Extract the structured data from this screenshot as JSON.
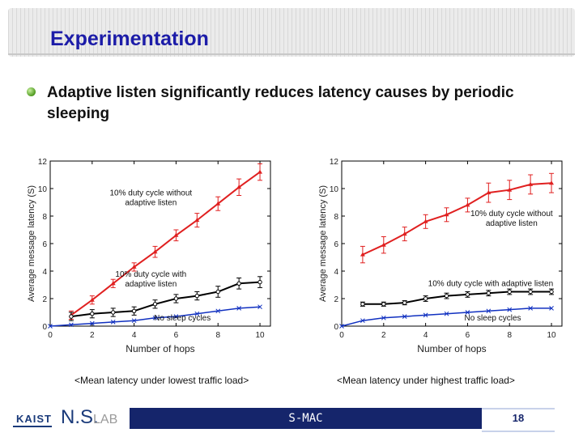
{
  "slide": {
    "title": "Experimentation",
    "bullet": "Adaptive listen significantly reduces latency causes by periodic sleeping"
  },
  "chart_data": [
    {
      "type": "line",
      "caption": "<Mean latency under lowest traffic load>",
      "xlabel": "Number of hops",
      "ylabel": "Average message latency (S)",
      "xlim": [
        0,
        10.5
      ],
      "ylim": [
        0,
        12
      ],
      "xticks": [
        "0",
        "2",
        "4",
        "6",
        "8",
        "10"
      ],
      "yticks": [
        "0",
        "2",
        "4",
        "6",
        "8",
        "10",
        "12"
      ],
      "series": [
        {
          "name": "10% duty cycle without adaptive listen",
          "color": "#e02020",
          "marker": "triangle",
          "x": [
            1,
            2,
            3,
            4,
            5,
            6,
            7,
            8,
            9,
            10
          ],
          "y": [
            0.8,
            1.9,
            3.1,
            4.3,
            5.4,
            6.6,
            7.7,
            8.9,
            10.1,
            11.2
          ],
          "err": [
            0.3,
            0.3,
            0.3,
            0.3,
            0.4,
            0.4,
            0.5,
            0.5,
            0.6,
            0.6
          ]
        },
        {
          "name": "10% duty cycle with adaptive listen",
          "color": "#000000",
          "marker": "circle",
          "x": [
            1,
            2,
            3,
            4,
            5,
            6,
            7,
            8,
            9,
            10
          ],
          "y": [
            0.7,
            0.9,
            1.0,
            1.1,
            1.6,
            2.0,
            2.2,
            2.5,
            3.1,
            3.2
          ],
          "err": [
            0.3,
            0.3,
            0.3,
            0.3,
            0.3,
            0.3,
            0.3,
            0.4,
            0.4,
            0.4
          ]
        },
        {
          "name": "No sleep cycles",
          "color": "#1030c0",
          "marker": "x",
          "x": [
            0,
            1,
            2,
            3,
            4,
            5,
            6,
            7,
            8,
            9,
            10
          ],
          "y": [
            0.0,
            0.1,
            0.2,
            0.3,
            0.4,
            0.6,
            0.7,
            0.9,
            1.1,
            1.3,
            1.4
          ],
          "err": []
        }
      ],
      "annotations": [
        {
          "text_lines": [
            "10% duty cycle without",
            "adaptive listen"
          ],
          "x": 4.8,
          "y": 9.5
        },
        {
          "text_lines": [
            "10% duty cycle with",
            "adaptive listen"
          ],
          "x": 4.8,
          "y": 3.6
        },
        {
          "text_lines": [
            "No sleep cycles"
          ],
          "x": 6.3,
          "y": 0.4
        }
      ]
    },
    {
      "type": "line",
      "caption": "<Mean latency under highest traffic load>",
      "xlabel": "Number of hops",
      "ylabel": "Average message latency (S)",
      "xlim": [
        0,
        10.5
      ],
      "ylim": [
        0,
        12
      ],
      "xticks": [
        "0",
        "2",
        "4",
        "6",
        "8",
        "10"
      ],
      "yticks": [
        "0",
        "2",
        "4",
        "6",
        "8",
        "10",
        "12"
      ],
      "series": [
        {
          "name": "10% duty cycle without adaptive listen",
          "color": "#e02020",
          "marker": "triangle",
          "x": [
            1,
            2,
            3,
            4,
            5,
            6,
            7,
            8,
            9,
            10
          ],
          "y": [
            5.2,
            5.9,
            6.7,
            7.6,
            8.1,
            8.8,
            9.7,
            9.9,
            10.3,
            10.4
          ],
          "err": [
            0.6,
            0.6,
            0.5,
            0.5,
            0.5,
            0.5,
            0.7,
            0.7,
            0.7,
            0.7
          ]
        },
        {
          "name": "10% duty cycle with adaptive listen",
          "color": "#000000",
          "marker": "circle",
          "x": [
            1,
            2,
            3,
            4,
            5,
            6,
            7,
            8,
            9,
            10
          ],
          "y": [
            1.6,
            1.6,
            1.7,
            2.0,
            2.2,
            2.3,
            2.4,
            2.5,
            2.5,
            2.5
          ],
          "err": [
            0.15,
            0.15,
            0.15,
            0.2,
            0.2,
            0.2,
            0.2,
            0.2,
            0.2,
            0.2
          ]
        },
        {
          "name": "No sleep cycles",
          "color": "#1030c0",
          "marker": "x",
          "x": [
            0,
            1,
            2,
            3,
            4,
            5,
            6,
            7,
            8,
            9,
            10
          ],
          "y": [
            0.0,
            0.4,
            0.6,
            0.7,
            0.8,
            0.9,
            1.0,
            1.1,
            1.2,
            1.3,
            1.3
          ],
          "err": []
        }
      ],
      "annotations": [
        {
          "text_lines": [
            "10% duty cycle without",
            "adaptive listen"
          ],
          "x": 8.1,
          "y": 8.0
        },
        {
          "text_lines": [
            "10% duty cycle with adaptive listen"
          ],
          "x": 7.1,
          "y": 2.9
        },
        {
          "text_lines": [
            "No sleep cycles"
          ],
          "x": 7.2,
          "y": 0.4
        }
      ]
    }
  ],
  "footer": {
    "logo_left": "KAIST",
    "logo_ns": "N.S.",
    "logo_lab": "LAB",
    "center_text": "S-MAC",
    "page_number": "18"
  }
}
